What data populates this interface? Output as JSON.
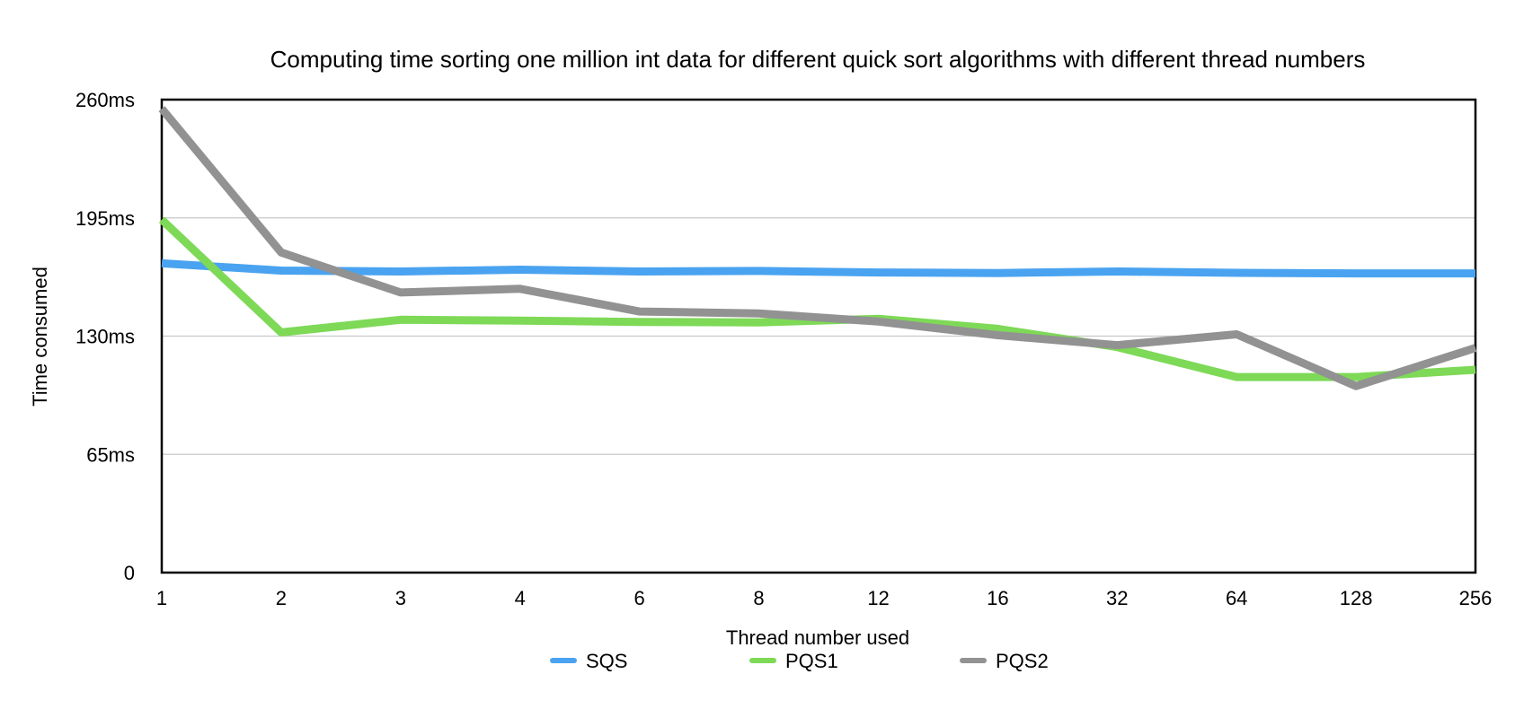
{
  "chart_data": {
    "type": "line",
    "title": "Computing time sorting one million int data for different quick sort algorithms with different thread numbers",
    "xlabel": "Thread number used",
    "ylabel": "Time consumed",
    "categories": [
      "1",
      "2",
      "3",
      "4",
      "6",
      "8",
      "12",
      "16",
      "32",
      "64",
      "128",
      "256"
    ],
    "y_ticks": [
      "0",
      "65ms",
      "130ms",
      "195ms",
      "260ms"
    ],
    "ylim": [
      0,
      260
    ],
    "grid": "horizontal",
    "legend": "bottom",
    "series": [
      {
        "name": "SQS",
        "color": "#4aa3f0",
        "values": [
          170,
          166,
          165.5,
          166.5,
          165.5,
          165.8,
          165,
          164.7,
          165.5,
          164.8,
          164.5,
          164.5
        ]
      },
      {
        "name": "PQS1",
        "color": "#7ed957",
        "values": [
          194,
          132,
          139,
          138.5,
          137.8,
          137.5,
          139.5,
          134,
          124,
          107.5,
          107.5,
          111.5
        ]
      },
      {
        "name": "PQS2",
        "color": "#929292",
        "values": [
          255,
          176,
          154,
          156,
          143.5,
          142.5,
          138,
          130.5,
          125,
          131,
          102.5,
          123.5
        ]
      }
    ]
  }
}
